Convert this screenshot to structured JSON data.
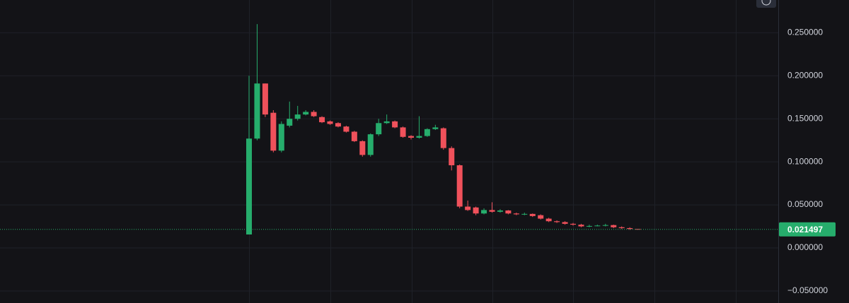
{
  "chart_data": {
    "type": "candlestick",
    "open": [
      0.0156,
      0.127,
      0.191,
      0.157,
      0.113,
      0.142,
      0.15,
      0.155,
      0.158,
      0.152,
      0.147,
      0.145,
      0.141,
      0.135,
      0.124,
      0.108,
      0.132,
      0.145,
      0.147,
      0.14,
      0.13,
      0.128,
      0.13,
      0.138,
      0.139,
      0.116,
      0.096,
      0.048,
      0.047,
      0.04,
      0.044,
      0.042,
      0.0435,
      0.04,
      0.039,
      0.0395,
      0.038,
      0.034,
      0.031,
      0.03,
      0.028,
      0.027,
      0.025,
      0.0255,
      0.026,
      0.0265,
      0.024,
      0.023,
      0.022
    ],
    "high": [
      0.2,
      0.26,
      0.191,
      0.16,
      0.147,
      0.17,
      0.165,
      0.16,
      0.16,
      0.153,
      0.148,
      0.146,
      0.142,
      0.136,
      0.125,
      0.133,
      0.15,
      0.155,
      0.148,
      0.141,
      0.131,
      0.153,
      0.139,
      0.143,
      0.14,
      0.118,
      0.097,
      0.055,
      0.048,
      0.046,
      0.053,
      0.045,
      0.044,
      0.041,
      0.041,
      0.04,
      0.039,
      0.035,
      0.032,
      0.031,
      0.029,
      0.028,
      0.027,
      0.027,
      0.028,
      0.027,
      0.025,
      0.024,
      0.022
    ],
    "low": [
      0.0156,
      0.125,
      0.152,
      0.111,
      0.111,
      0.14,
      0.148,
      0.154,
      0.152,
      0.145,
      0.143,
      0.14,
      0.134,
      0.123,
      0.106,
      0.106,
      0.13,
      0.144,
      0.139,
      0.128,
      0.126,
      0.127,
      0.129,
      0.137,
      0.114,
      0.09,
      0.046,
      0.043,
      0.038,
      0.039,
      0.041,
      0.041,
      0.039,
      0.038,
      0.038,
      0.036,
      0.033,
      0.03,
      0.029,
      0.027,
      0.026,
      0.024,
      0.024,
      0.025,
      0.025,
      0.023,
      0.022,
      0.021,
      0.0212
    ],
    "close": [
      0.127,
      0.191,
      0.155,
      0.113,
      0.144,
      0.15,
      0.155,
      0.158,
      0.153,
      0.146,
      0.144,
      0.141,
      0.135,
      0.124,
      0.108,
      0.132,
      0.145,
      0.147,
      0.14,
      0.129,
      0.128,
      0.13,
      0.138,
      0.14,
      0.116,
      0.096,
      0.048,
      0.044,
      0.04,
      0.044,
      0.042,
      0.0435,
      0.04,
      0.039,
      0.0395,
      0.037,
      0.034,
      0.031,
      0.03,
      0.028,
      0.027,
      0.025,
      0.0255,
      0.026,
      0.0265,
      0.024,
      0.023,
      0.022,
      0.021497
    ],
    "up_color": "#26ad6c",
    "down_color": "#f0515b",
    "ylim": [
      -0.064,
      0.288
    ],
    "yticks": [
      {
        "value": 0.25,
        "label": "0.250000"
      },
      {
        "value": 0.2,
        "label": "0.200000"
      },
      {
        "value": 0.15,
        "label": "0.150000"
      },
      {
        "value": 0.1,
        "label": "0.100000"
      },
      {
        "value": 0.05,
        "label": "0.050000"
      },
      {
        "value": 0,
        "label": "0.000000"
      },
      {
        "value": -0.05,
        "label": "−0.050000"
      }
    ],
    "grid": true,
    "last_price": 0.021497,
    "last_price_color": "#26ad6c"
  }
}
